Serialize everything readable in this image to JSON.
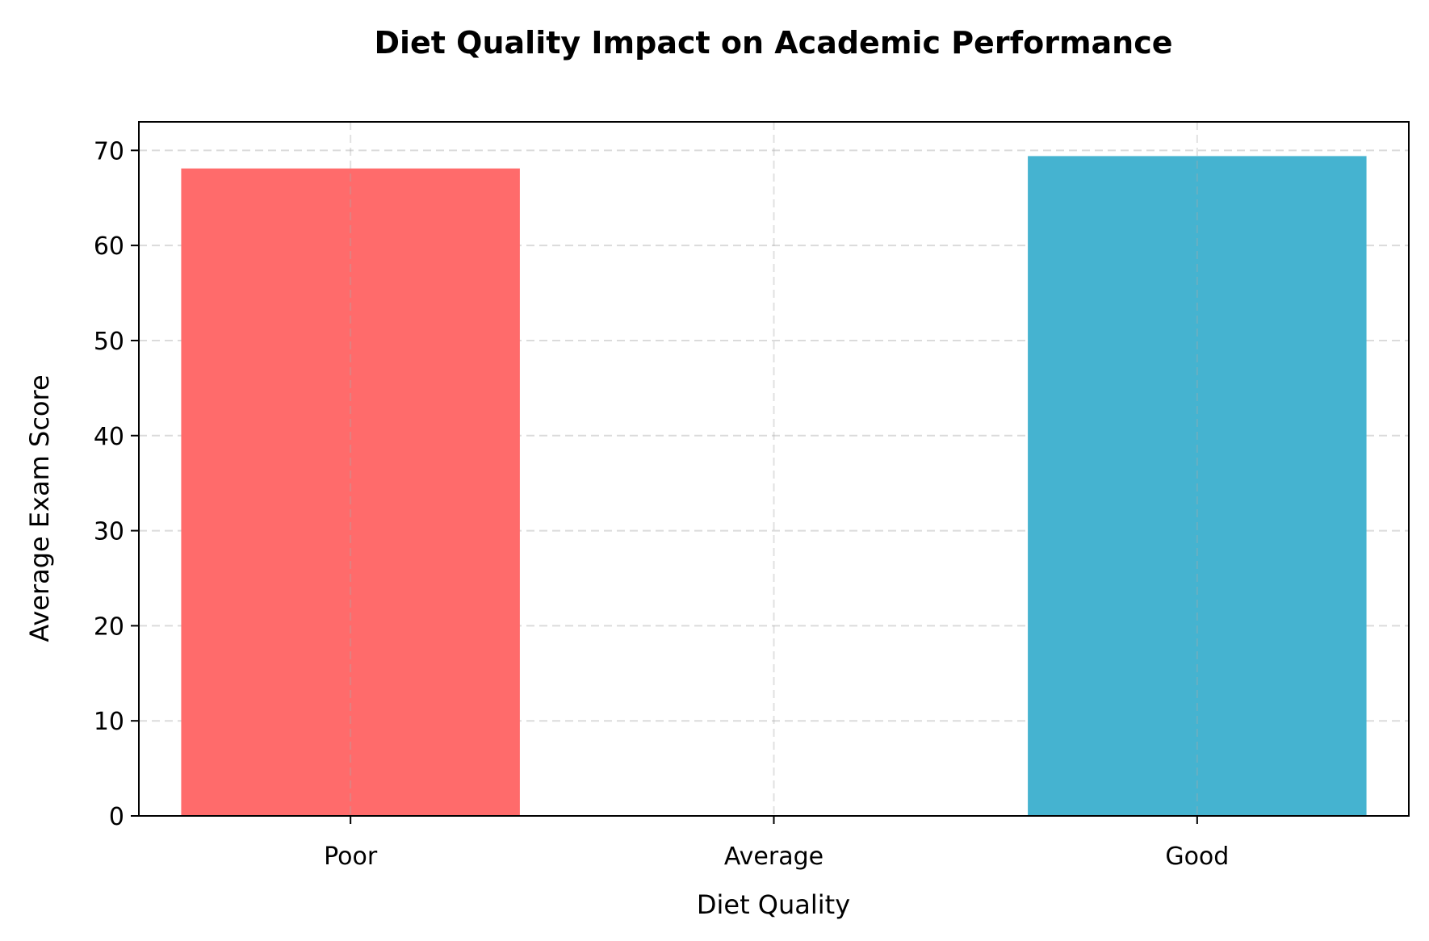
{
  "chart_data": {
    "type": "bar",
    "title": "Diet Quality Impact on Academic Performance",
    "xlabel": "Diet Quality",
    "ylabel": "Average Exam Score",
    "categories": [
      "Poor",
      "Average",
      "Good"
    ],
    "values": [
      68.1,
      0,
      69.4
    ],
    "colors": [
      "#ff6b6b",
      "#4ecdc4",
      "#45b3d0"
    ],
    "ylim": [
      0,
      73
    ],
    "yticks": [
      0,
      10,
      20,
      30,
      40,
      50,
      60,
      70
    ],
    "grid": true,
    "legend": "none"
  }
}
